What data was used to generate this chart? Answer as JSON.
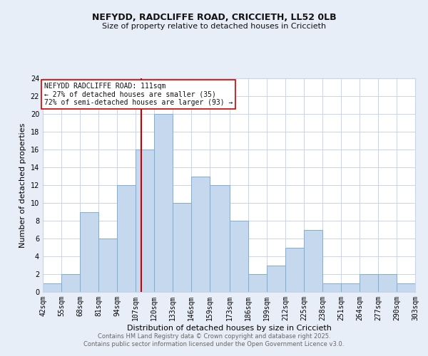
{
  "title": "NEFYDD, RADCLIFFE ROAD, CRICCIETH, LL52 0LB",
  "subtitle": "Size of property relative to detached houses in Criccieth",
  "xlabel": "Distribution of detached houses by size in Criccieth",
  "ylabel": "Number of detached properties",
  "bar_color": "#c5d8ee",
  "bar_edge_color": "#7bafd4",
  "background_color": "#e8eef8",
  "plot_bg_color": "#ffffff",
  "grid_color": "#c8d4e8",
  "bin_labels": [
    "42sqm",
    "55sqm",
    "68sqm",
    "81sqm",
    "94sqm",
    "107sqm",
    "120sqm",
    "133sqm",
    "146sqm",
    "159sqm",
    "173sqm",
    "186sqm",
    "199sqm",
    "212sqm",
    "225sqm",
    "238sqm",
    "251sqm",
    "264sqm",
    "277sqm",
    "290sqm",
    "303sqm"
  ],
  "bin_edges": [
    42,
    55,
    68,
    81,
    94,
    107,
    120,
    133,
    146,
    159,
    173,
    186,
    199,
    212,
    225,
    238,
    251,
    264,
    277,
    290,
    303
  ],
  "bar_heights": [
    1,
    2,
    9,
    6,
    12,
    16,
    20,
    10,
    13,
    12,
    8,
    2,
    3,
    5,
    7,
    1,
    1,
    2,
    2,
    1,
    0
  ],
  "ylim": [
    0,
    24
  ],
  "yticks": [
    0,
    2,
    4,
    6,
    8,
    10,
    12,
    14,
    16,
    18,
    20,
    22,
    24
  ],
  "vline_x": 111,
  "vline_color": "#cc0000",
  "annotation_title": "NEFYDD RADCLIFFE ROAD: 111sqm",
  "annotation_line1": "← 27% of detached houses are smaller (35)",
  "annotation_line2": "72% of semi-detached houses are larger (93) →",
  "annotation_box_color": "#ffffff",
  "annotation_box_edge": "#cc0000",
  "footer_line1": "Contains HM Land Registry data © Crown copyright and database right 2025.",
  "footer_line2": "Contains public sector information licensed under the Open Government Licence v3.0.",
  "footer_color": "#666666",
  "title_fontsize": 9,
  "subtitle_fontsize": 8,
  "axis_label_fontsize": 8,
  "tick_fontsize": 7,
  "annotation_fontsize": 7,
  "footer_fontsize": 6
}
